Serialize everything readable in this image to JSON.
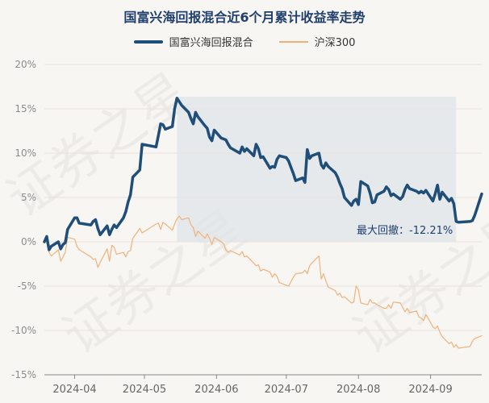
{
  "chart_data": {
    "type": "line",
    "title": "国富兴海回报混合近6个月累计收益率走势",
    "ylim": [
      -15,
      20
    ],
    "yticks": [
      20,
      15,
      10,
      5,
      0,
      -5,
      -10,
      -15
    ],
    "ytick_labels": [
      "20%",
      "15%",
      "10%",
      "5%",
      "0%",
      "-5%",
      "-10%",
      "-15%"
    ],
    "xlim": [
      "2024-03-19",
      "2024-09-23"
    ],
    "xticks": [
      "2024-04-01",
      "2024-05-01",
      "2024-06-01",
      "2024-07-01",
      "2024-08-01",
      "2024-09-01"
    ],
    "xtick_labels": [
      "2024-04",
      "2024-05",
      "2024-06",
      "2024-07",
      "2024-08",
      "2024-09"
    ],
    "grid": true,
    "legend_position": "top-center",
    "max_drawdown": {
      "label": "最大回撤：-12.21%",
      "start": "2024-05-15",
      "end": "2024-09-12",
      "color": "#dfe4ea"
    },
    "series": [
      {
        "name": "国富兴海回报混合",
        "color": "#1f4e79",
        "points": [
          [
            "2024-03-19",
            0.0
          ],
          [
            "2024-03-20",
            0.6
          ],
          [
            "2024-03-21",
            -0.9
          ],
          [
            "2024-03-22",
            -0.5
          ],
          [
            "2024-03-25",
            0.0
          ],
          [
            "2024-03-26",
            -0.8
          ],
          [
            "2024-03-27",
            -0.3
          ],
          [
            "2024-03-28",
            -0.1
          ],
          [
            "2024-03-29",
            1.4
          ],
          [
            "2024-04-01",
            2.7
          ],
          [
            "2024-04-02",
            2.7
          ],
          [
            "2024-04-03",
            2.1
          ],
          [
            "2024-04-08",
            1.9
          ],
          [
            "2024-04-09",
            2.3
          ],
          [
            "2024-04-10",
            2.5
          ],
          [
            "2024-04-11",
            1.5
          ],
          [
            "2024-04-12",
            0.8
          ],
          [
            "2024-04-15",
            1.8
          ],
          [
            "2024-04-16",
            0.8
          ],
          [
            "2024-04-17",
            1.4
          ],
          [
            "2024-04-18",
            1.9
          ],
          [
            "2024-04-19",
            1.6
          ],
          [
            "2024-04-22",
            2.7
          ],
          [
            "2024-04-23",
            3.4
          ],
          [
            "2024-04-24",
            4.5
          ],
          [
            "2024-04-25",
            5.3
          ],
          [
            "2024-04-26",
            7.3
          ],
          [
            "2024-04-29",
            8.1
          ],
          [
            "2024-04-30",
            11.0
          ],
          [
            "2024-05-06",
            10.7
          ],
          [
            "2024-05-07",
            12.0
          ],
          [
            "2024-05-08",
            13.3
          ],
          [
            "2024-05-09",
            13.2
          ],
          [
            "2024-05-10",
            12.7
          ],
          [
            "2024-05-13",
            13.0
          ],
          [
            "2024-05-14",
            15.0
          ],
          [
            "2024-05-15",
            16.2
          ],
          [
            "2024-05-16",
            15.8
          ],
          [
            "2024-05-17",
            15.4
          ],
          [
            "2024-05-20",
            14.6
          ],
          [
            "2024-05-21",
            13.9
          ],
          [
            "2024-05-22",
            13.3
          ],
          [
            "2024-05-23",
            14.6
          ],
          [
            "2024-05-24",
            14.1
          ],
          [
            "2024-05-27",
            13.1
          ],
          [
            "2024-05-28",
            12.8
          ],
          [
            "2024-05-29",
            11.8
          ],
          [
            "2024-05-30",
            11.4
          ],
          [
            "2024-05-31",
            12.6
          ],
          [
            "2024-06-03",
            11.7
          ],
          [
            "2024-06-04",
            11.6
          ],
          [
            "2024-06-05",
            11.5
          ],
          [
            "2024-06-06",
            11.0
          ],
          [
            "2024-06-07",
            10.6
          ],
          [
            "2024-06-11",
            10.0
          ],
          [
            "2024-06-12",
            10.7
          ],
          [
            "2024-06-13",
            10.2
          ],
          [
            "2024-06-14",
            10.5
          ],
          [
            "2024-06-17",
            9.7
          ],
          [
            "2024-06-18",
            11.0
          ],
          [
            "2024-06-19",
            10.5
          ],
          [
            "2024-06-20",
            9.5
          ],
          [
            "2024-06-21",
            9.6
          ],
          [
            "2024-06-24",
            8.3
          ],
          [
            "2024-06-25",
            8.5
          ],
          [
            "2024-06-26",
            8.4
          ],
          [
            "2024-06-27",
            9.3
          ],
          [
            "2024-06-28",
            9.7
          ],
          [
            "2024-07-01",
            9.5
          ],
          [
            "2024-07-02",
            9.1
          ],
          [
            "2024-07-03",
            8.4
          ],
          [
            "2024-07-04",
            7.7
          ],
          [
            "2024-07-05",
            6.9
          ],
          [
            "2024-07-08",
            7.2
          ],
          [
            "2024-07-09",
            6.7
          ],
          [
            "2024-07-10",
            10.4
          ],
          [
            "2024-07-11",
            9.4
          ],
          [
            "2024-07-12",
            9.7
          ],
          [
            "2024-07-15",
            10.0
          ],
          [
            "2024-07-16",
            8.7
          ],
          [
            "2024-07-17",
            8.3
          ],
          [
            "2024-07-18",
            8.9
          ],
          [
            "2024-07-19",
            8.5
          ],
          [
            "2024-07-22",
            7.8
          ],
          [
            "2024-07-23",
            7.3
          ],
          [
            "2024-07-24",
            6.6
          ],
          [
            "2024-07-25",
            6.0
          ],
          [
            "2024-07-26",
            5.0
          ],
          [
            "2024-07-29",
            4.1
          ],
          [
            "2024-07-30",
            4.6
          ],
          [
            "2024-07-31",
            4.8
          ],
          [
            "2024-08-01",
            4.2
          ],
          [
            "2024-08-02",
            6.8
          ],
          [
            "2024-08-05",
            6.3
          ],
          [
            "2024-08-06",
            5.5
          ],
          [
            "2024-08-07",
            4.4
          ],
          [
            "2024-08-08",
            4.5
          ],
          [
            "2024-08-09",
            5.3
          ],
          [
            "2024-08-12",
            5.7
          ],
          [
            "2024-08-13",
            6.2
          ],
          [
            "2024-08-14",
            5.9
          ],
          [
            "2024-08-15",
            5.2
          ],
          [
            "2024-08-16",
            5.4
          ],
          [
            "2024-08-19",
            4.8
          ],
          [
            "2024-08-20",
            5.1
          ],
          [
            "2024-08-21",
            5.9
          ],
          [
            "2024-08-22",
            6.4
          ],
          [
            "2024-08-23",
            6.0
          ],
          [
            "2024-08-26",
            5.7
          ],
          [
            "2024-08-27",
            5.5
          ],
          [
            "2024-08-28",
            5.7
          ],
          [
            "2024-08-29",
            5.5
          ],
          [
            "2024-08-30",
            5.8
          ],
          [
            "2024-09-02",
            4.6
          ],
          [
            "2024-09-03",
            5.4
          ],
          [
            "2024-09-04",
            6.4
          ],
          [
            "2024-09-05",
            4.8
          ],
          [
            "2024-09-06",
            5.6
          ],
          [
            "2024-09-09",
            4.6
          ],
          [
            "2024-09-10",
            4.9
          ],
          [
            "2024-09-11",
            4.3
          ],
          [
            "2024-09-12",
            2.3
          ],
          [
            "2024-09-13",
            2.2
          ],
          [
            "2024-09-18",
            2.3
          ],
          [
            "2024-09-19",
            2.4
          ],
          [
            "2024-09-20",
            3.0
          ],
          [
            "2024-09-23",
            5.4
          ]
        ]
      },
      {
        "name": "沪深300",
        "color": "#f0b27a",
        "points": [
          [
            "2024-03-19",
            0.0
          ],
          [
            "2024-03-20",
            0.1
          ],
          [
            "2024-03-21",
            -1.2
          ],
          [
            "2024-03-22",
            -1.6
          ],
          [
            "2024-03-25",
            -0.9
          ],
          [
            "2024-03-26",
            -2.2
          ],
          [
            "2024-03-27",
            -1.7
          ],
          [
            "2024-03-28",
            -1.2
          ],
          [
            "2024-03-29",
            0.5
          ],
          [
            "2024-04-01",
            0.3
          ],
          [
            "2024-04-02",
            -0.5
          ],
          [
            "2024-04-03",
            -0.9
          ],
          [
            "2024-04-08",
            -1.7
          ],
          [
            "2024-04-09",
            -2.0
          ],
          [
            "2024-04-10",
            -1.9
          ],
          [
            "2024-04-11",
            -2.9
          ],
          [
            "2024-04-12",
            -2.3
          ],
          [
            "2024-04-15",
            -0.8
          ],
          [
            "2024-04-16",
            -2.2
          ],
          [
            "2024-04-17",
            -0.4
          ],
          [
            "2024-04-18",
            -0.6
          ],
          [
            "2024-04-19",
            -1.4
          ],
          [
            "2024-04-22",
            -1.2
          ],
          [
            "2024-04-23",
            -1.7
          ],
          [
            "2024-04-24",
            -1.1
          ],
          [
            "2024-04-25",
            -1.0
          ],
          [
            "2024-04-26",
            0.4
          ],
          [
            "2024-04-29",
            1.5
          ],
          [
            "2024-04-30",
            1.0
          ],
          [
            "2024-05-06",
            2.0
          ],
          [
            "2024-05-07",
            2.1
          ],
          [
            "2024-05-08",
            1.4
          ],
          [
            "2024-05-09",
            2.2
          ],
          [
            "2024-05-10",
            2.0
          ],
          [
            "2024-05-13",
            1.3
          ],
          [
            "2024-05-14",
            2.0
          ],
          [
            "2024-05-15",
            2.6
          ],
          [
            "2024-05-16",
            2.9
          ],
          [
            "2024-05-17",
            2.5
          ],
          [
            "2024-05-20",
            2.7
          ],
          [
            "2024-05-21",
            1.9
          ],
          [
            "2024-05-22",
            1.6
          ],
          [
            "2024-05-23",
            0.6
          ],
          [
            "2024-05-24",
            1.2
          ],
          [
            "2024-05-27",
            0.4
          ],
          [
            "2024-05-28",
            0.9
          ],
          [
            "2024-05-29",
            0.4
          ],
          [
            "2024-05-30",
            -0.3
          ],
          [
            "2024-05-31",
            0.5
          ],
          [
            "2024-06-03",
            0.0
          ],
          [
            "2024-06-04",
            -0.2
          ],
          [
            "2024-06-05",
            -0.9
          ],
          [
            "2024-06-06",
            -1.2
          ],
          [
            "2024-06-07",
            -1.0
          ],
          [
            "2024-06-11",
            -1.5
          ],
          [
            "2024-06-12",
            -1.1
          ],
          [
            "2024-06-13",
            -1.7
          ],
          [
            "2024-06-14",
            -1.6
          ],
          [
            "2024-06-17",
            -2.4
          ],
          [
            "2024-06-18",
            -2.7
          ],
          [
            "2024-06-19",
            -2.6
          ],
          [
            "2024-06-20",
            -3.3
          ],
          [
            "2024-06-21",
            -3.1
          ],
          [
            "2024-06-24",
            -3.4
          ],
          [
            "2024-06-25",
            -4.0
          ],
          [
            "2024-06-26",
            -3.6
          ],
          [
            "2024-06-27",
            -3.9
          ],
          [
            "2024-06-28",
            -4.6
          ],
          [
            "2024-07-01",
            -4.9
          ],
          [
            "2024-07-02",
            -5.0
          ],
          [
            "2024-07-03",
            -4.5
          ],
          [
            "2024-07-04",
            -4.0
          ],
          [
            "2024-07-05",
            -3.6
          ],
          [
            "2024-07-08",
            -3.5
          ],
          [
            "2024-07-09",
            -3.2
          ],
          [
            "2024-07-10",
            -3.6
          ],
          [
            "2024-07-11",
            -2.7
          ],
          [
            "2024-07-12",
            -2.4
          ],
          [
            "2024-07-15",
            -1.6
          ],
          [
            "2024-07-16",
            -4.2
          ],
          [
            "2024-07-17",
            -3.6
          ],
          [
            "2024-07-18",
            -4.4
          ],
          [
            "2024-07-19",
            -5.1
          ],
          [
            "2024-07-22",
            -5.5
          ],
          [
            "2024-07-23",
            -6.0
          ],
          [
            "2024-07-24",
            -5.8
          ],
          [
            "2024-07-25",
            -6.3
          ],
          [
            "2024-07-26",
            -6.2
          ],
          [
            "2024-07-29",
            -6.9
          ],
          [
            "2024-07-30",
            -6.8
          ],
          [
            "2024-07-31",
            -5.0
          ],
          [
            "2024-08-01",
            -5.4
          ],
          [
            "2024-08-02",
            -6.9
          ],
          [
            "2024-08-05",
            -7.1
          ],
          [
            "2024-08-06",
            -6.5
          ],
          [
            "2024-08-07",
            -6.9
          ],
          [
            "2024-08-08",
            -6.9
          ],
          [
            "2024-08-09",
            -7.1
          ],
          [
            "2024-08-12",
            -7.5
          ],
          [
            "2024-08-13",
            -7.5
          ],
          [
            "2024-08-14",
            -7.1
          ],
          [
            "2024-08-15",
            -7.5
          ],
          [
            "2024-08-16",
            -6.8
          ],
          [
            "2024-08-19",
            -6.9
          ],
          [
            "2024-08-20",
            -7.4
          ],
          [
            "2024-08-21",
            -7.9
          ],
          [
            "2024-08-22",
            -7.5
          ],
          [
            "2024-08-23",
            -8.0
          ],
          [
            "2024-08-26",
            -7.8
          ],
          [
            "2024-08-27",
            -8.5
          ],
          [
            "2024-08-28",
            -8.6
          ],
          [
            "2024-08-29",
            -8.9
          ],
          [
            "2024-08-30",
            -8.2
          ],
          [
            "2024-09-02",
            -9.6
          ],
          [
            "2024-09-03",
            -9.8
          ],
          [
            "2024-09-04",
            -9.5
          ],
          [
            "2024-09-05",
            -10.2
          ],
          [
            "2024-09-06",
            -10.7
          ],
          [
            "2024-09-09",
            -11.5
          ],
          [
            "2024-09-10",
            -11.3
          ],
          [
            "2024-09-11",
            -11.9
          ],
          [
            "2024-09-12",
            -11.6
          ],
          [
            "2024-09-13",
            -12.0
          ],
          [
            "2024-09-18",
            -11.8
          ],
          [
            "2024-09-19",
            -11.2
          ],
          [
            "2024-09-20",
            -10.9
          ],
          [
            "2024-09-23",
            -10.6
          ]
        ]
      }
    ]
  },
  "watermark": "证券之星"
}
